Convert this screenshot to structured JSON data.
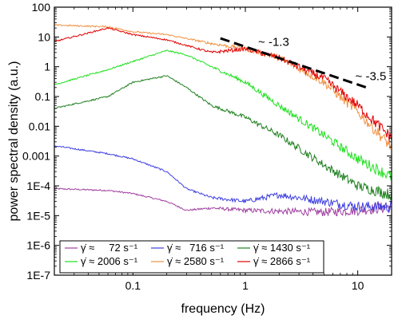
{
  "chart_data": {
    "type": "line",
    "title": "",
    "xlabel": "frequency (Hz)",
    "ylabel": "power spectral density (a.u.)",
    "xscale": "log",
    "yscale": "log",
    "xlim": [
      0.02,
      20
    ],
    "ylim": [
      1e-07,
      100
    ],
    "grid": false,
    "legend_position": "bottom-left",
    "x_ticks": [
      {
        "value": 0.1,
        "label": "0.1"
      },
      {
        "value": 1,
        "label": "1"
      },
      {
        "value": 10,
        "label": "10"
      }
    ],
    "y_ticks": [
      {
        "value": 100,
        "label": "100"
      },
      {
        "value": 10,
        "label": "10"
      },
      {
        "value": 1,
        "label": "1"
      },
      {
        "value": 0.1,
        "label": "0.1"
      },
      {
        "value": 0.01,
        "label": "0.01"
      },
      {
        "value": 0.001,
        "label": "0.001"
      },
      {
        "value": 0.0001,
        "label": "1E-4"
      },
      {
        "value": 1e-05,
        "label": "1E-5"
      },
      {
        "value": 1e-06,
        "label": "1E-6"
      },
      {
        "value": 1e-07,
        "label": "1E-7"
      }
    ],
    "series": [
      {
        "name": "γ̇ ≈     72 s⁻¹",
        "color": "#a040a0",
        "x": [
          0.02,
          0.06,
          0.1,
          0.2,
          0.3,
          0.5,
          1,
          2,
          5,
          10,
          20
        ],
        "y": [
          8e-05,
          7e-05,
          5.5e-05,
          3e-05,
          1.5e-05,
          1.8e-05,
          1.5e-05,
          1.4e-05,
          1.3e-05,
          1.5e-05,
          2e-05
        ]
      },
      {
        "name": "γ̇ ≈   716 s⁻¹",
        "color": "#4040e0",
        "x": [
          0.02,
          0.06,
          0.1,
          0.2,
          0.3,
          0.5,
          1,
          2,
          5,
          10,
          20
        ],
        "y": [
          0.0022,
          0.0012,
          0.0008,
          0.0003,
          8e-05,
          4e-05,
          3e-05,
          5e-05,
          3e-05,
          2e-05,
          2e-05
        ]
      },
      {
        "name": "γ̇ ≈ 1430 s⁻¹",
        "color": "#208020",
        "x": [
          0.02,
          0.06,
          0.1,
          0.2,
          0.3,
          0.5,
          1,
          2,
          5,
          10,
          20
        ],
        "y": [
          0.04,
          0.1,
          0.3,
          0.5,
          0.2,
          0.05,
          0.02,
          0.005,
          0.0005,
          0.0001,
          5e-05
        ]
      },
      {
        "name": "γ̇ ≈ 2006 s⁻¹",
        "color": "#20e020",
        "x": [
          0.02,
          0.06,
          0.1,
          0.2,
          0.3,
          0.5,
          1,
          2,
          5,
          10,
          20
        ],
        "y": [
          0.25,
          0.8,
          1.5,
          3.5,
          2.5,
          1,
          0.3,
          0.05,
          0.005,
          0.0008,
          0.0002
        ]
      },
      {
        "name": "γ̇ ≈ 2580 s⁻¹",
        "color": "#f09040",
        "x": [
          0.02,
          0.06,
          0.1,
          0.2,
          0.5,
          1,
          2,
          5,
          10,
          20
        ],
        "y": [
          25,
          22,
          15,
          12,
          6,
          4,
          2,
          0.3,
          0.03,
          0.002
        ]
      },
      {
        "name": "γ̇ ≈ 2866 s⁻¹",
        "color": "#e00000",
        "x": [
          0.02,
          0.06,
          0.1,
          0.2,
          0.5,
          1,
          2,
          5,
          10,
          20
        ],
        "y": [
          7,
          20,
          12,
          8,
          3,
          4,
          2,
          0.4,
          0.05,
          0.004
        ]
      }
    ],
    "annotations": [
      {
        "text": "~ -1.3",
        "x": 1.3,
        "y": 5
      },
      {
        "text": "~ -3.5",
        "x": 9.5,
        "y": 0.35
      }
    ],
    "fit_line": {
      "x": [
        0.6,
        12
      ],
      "y": [
        9,
        0.2
      ],
      "color": "#000000"
    }
  }
}
